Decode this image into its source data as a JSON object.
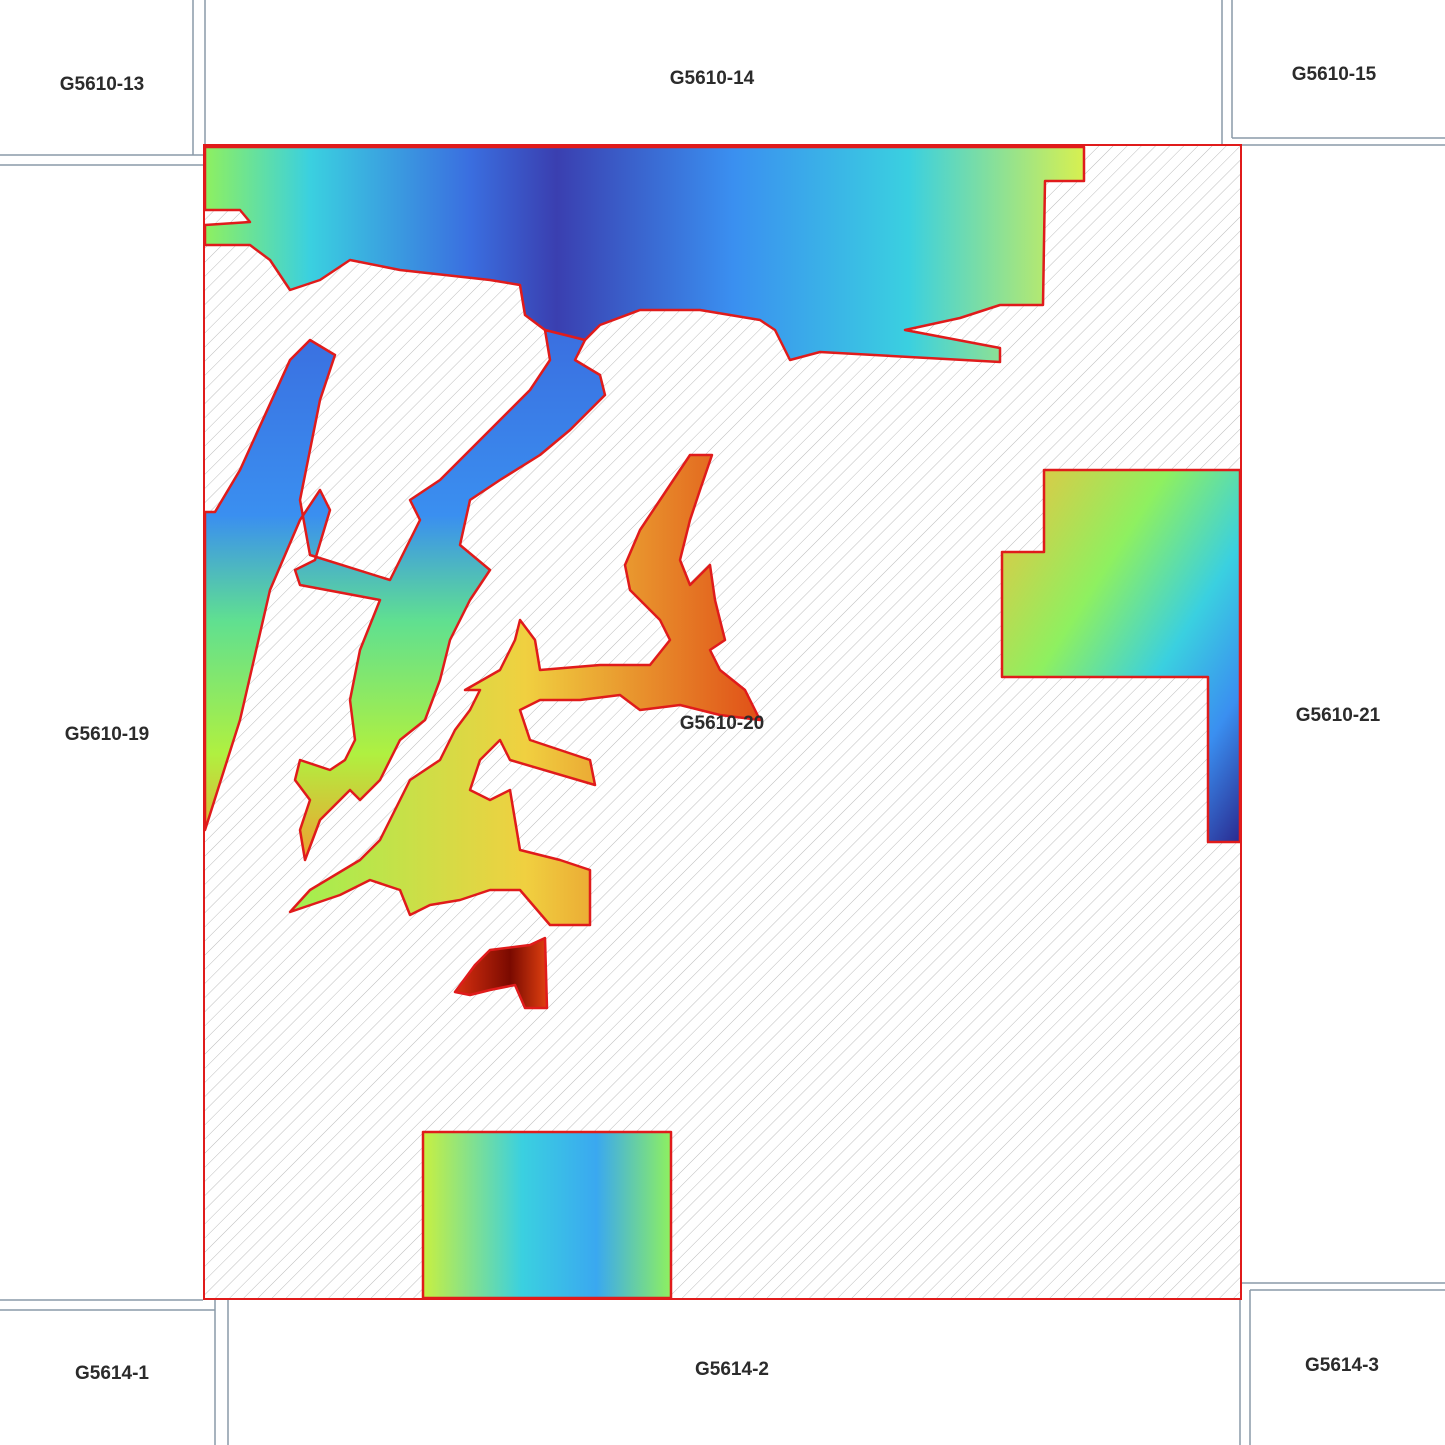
{
  "map": {
    "tiles": [
      {
        "id": "t13",
        "label": "G5610-13"
      },
      {
        "id": "t14",
        "label": "G5610-14"
      },
      {
        "id": "t15",
        "label": "G5610-15"
      },
      {
        "id": "t19",
        "label": "G5610-19"
      },
      {
        "id": "t20",
        "label": "G5610-20"
      },
      {
        "id": "t21",
        "label": "G5610-21"
      },
      {
        "id": "t1",
        "label": "G5614-1"
      },
      {
        "id": "t2",
        "label": "G5614-2"
      },
      {
        "id": "t3",
        "label": "G5614-3"
      }
    ],
    "colors": {
      "tile_border": "#8a9aa8",
      "coverage_outline": "#e01b1b",
      "hatch": "#bdbdbd",
      "elevation_ramp": [
        "#3a3fb0",
        "#3a8ff0",
        "#3ad0e0",
        "#8ef060",
        "#f0e040",
        "#f08a20",
        "#c81e10",
        "#7a0a00"
      ]
    }
  }
}
